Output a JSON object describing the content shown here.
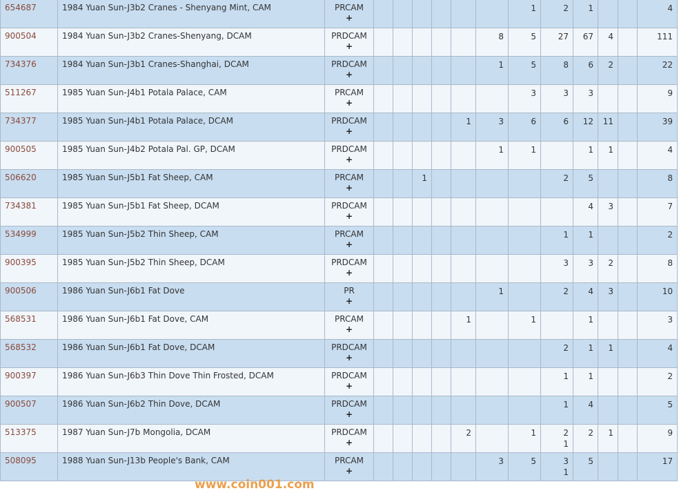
{
  "rows": [
    {
      "id": "654687",
      "desc": "1984 Yuan Sun-J3b2 Cranes - Shenyang Mint, CAM",
      "grade": "PRCAM",
      "plus": "+",
      "counts": [
        "",
        "",
        "",
        "",
        "",
        "",
        "1",
        "2",
        "1",
        "",
        "",
        ""
      ],
      "subs": {},
      "total": "4"
    },
    {
      "id": "900504",
      "desc": "1984 Yuan Sun-J3b2 Cranes-Shenyang, DCAM",
      "grade": "PRDCAM",
      "plus": "+",
      "counts": [
        "",
        "",
        "",
        "",
        "",
        "8",
        "5",
        "27",
        "67",
        "4",
        "",
        ""
      ],
      "subs": {},
      "total": "111"
    },
    {
      "id": "734376",
      "desc": "1984 Yuan Sun-J3b1 Cranes-Shanghai, DCAM",
      "grade": "PRDCAM",
      "plus": "+",
      "counts": [
        "",
        "",
        "",
        "",
        "",
        "1",
        "5",
        "8",
        "6",
        "2",
        "",
        ""
      ],
      "subs": {},
      "total": "22"
    },
    {
      "id": "511267",
      "desc": "1985 Yuan Sun-J4b1 Potala Palace, CAM",
      "grade": "PRCAM",
      "plus": "+",
      "counts": [
        "",
        "",
        "",
        "",
        "",
        "",
        "3",
        "3",
        "3",
        "",
        "",
        ""
      ],
      "subs": {},
      "total": "9"
    },
    {
      "id": "734377",
      "desc": "1985 Yuan Sun-J4b1 Potala Palace, DCAM",
      "grade": "PRDCAM",
      "plus": "+",
      "counts": [
        "",
        "",
        "",
        "",
        "1",
        "3",
        "6",
        "6",
        "12",
        "11",
        "",
        ""
      ],
      "subs": {},
      "total": "39"
    },
    {
      "id": "900505",
      "desc": "1985 Yuan Sun-J4b2 Potala Pal. GP, DCAM",
      "grade": "PRDCAM",
      "plus": "+",
      "counts": [
        "",
        "",
        "",
        "",
        "",
        "1",
        "1",
        "",
        "1",
        "1",
        "",
        ""
      ],
      "subs": {},
      "total": "4"
    },
    {
      "id": "506620",
      "desc": "1985 Yuan Sun-J5b1 Fat Sheep, CAM",
      "grade": "PRCAM",
      "plus": "+",
      "counts": [
        "",
        "",
        "1",
        "",
        "",
        "",
        "",
        "2",
        "5",
        "",
        "",
        ""
      ],
      "subs": {},
      "total": "8"
    },
    {
      "id": "734381",
      "desc": "1985 Yuan Sun-J5b1 Fat Sheep, DCAM",
      "grade": "PRDCAM",
      "plus": "+",
      "counts": [
        "",
        "",
        "",
        "",
        "",
        "",
        "",
        "",
        "4",
        "3",
        "",
        ""
      ],
      "subs": {},
      "total": "7"
    },
    {
      "id": "534999",
      "desc": "1985 Yuan Sun-J5b2 Thin Sheep, CAM",
      "grade": "PRCAM",
      "plus": "+",
      "counts": [
        "",
        "",
        "",
        "",
        "",
        "",
        "",
        "1",
        "1",
        "",
        "",
        ""
      ],
      "subs": {},
      "total": "2"
    },
    {
      "id": "900395",
      "desc": "1985 Yuan Sun-J5b2 Thin Sheep, DCAM",
      "grade": "PRDCAM",
      "plus": "+",
      "counts": [
        "",
        "",
        "",
        "",
        "",
        "",
        "",
        "3",
        "3",
        "2",
        "",
        ""
      ],
      "subs": {},
      "total": "8"
    },
    {
      "id": "900506",
      "desc": "1986 Yuan Sun-J6b1 Fat Dove",
      "grade": "PR",
      "plus": "+",
      "counts": [
        "",
        "",
        "",
        "",
        "",
        "1",
        "",
        "2",
        "4",
        "3",
        "",
        ""
      ],
      "subs": {},
      "total": "10"
    },
    {
      "id": "568531",
      "desc": "1986 Yuan Sun-J6b1 Fat Dove, CAM",
      "grade": "PRCAM",
      "plus": "+",
      "counts": [
        "",
        "",
        "",
        "",
        "1",
        "",
        "1",
        "",
        "1",
        "",
        "",
        ""
      ],
      "subs": {},
      "total": "3"
    },
    {
      "id": "568532",
      "desc": "1986 Yuan Sun-J6b1 Fat Dove, DCAM",
      "grade": "PRDCAM",
      "plus": "+",
      "counts": [
        "",
        "",
        "",
        "",
        "",
        "",
        "",
        "2",
        "1",
        "1",
        "",
        ""
      ],
      "subs": {},
      "total": "4"
    },
    {
      "id": "900397",
      "desc": "1986 Yuan Sun-J6b3 Thin Dove Thin Frosted, DCAM",
      "grade": "PRDCAM",
      "plus": "+",
      "counts": [
        "",
        "",
        "",
        "",
        "",
        "",
        "",
        "1",
        "1",
        "",
        "",
        ""
      ],
      "subs": {},
      "total": "2"
    },
    {
      "id": "900507",
      "desc": "1986 Yuan Sun-J6b2 Thin Dove, DCAM",
      "grade": "PRDCAM",
      "plus": "+",
      "counts": [
        "",
        "",
        "",
        "",
        "",
        "",
        "",
        "1",
        "4",
        "",
        "",
        ""
      ],
      "subs": {},
      "total": "5"
    },
    {
      "id": "513375",
      "desc": "1987 Yuan Sun-J7b Mongolia, DCAM",
      "grade": "PRDCAM",
      "plus": "+",
      "counts": [
        "",
        "",
        "",
        "",
        "2",
        "",
        "1",
        "2",
        "2",
        "1",
        "",
        ""
      ],
      "subs": {
        "7": "1"
      },
      "total": "9"
    },
    {
      "id": "508095",
      "desc": "1988 Yuan Sun-J13b People's Bank, CAM",
      "grade": "PRCAM",
      "plus": "+",
      "counts": [
        "",
        "",
        "",
        "",
        "",
        "3",
        "5",
        "3",
        "5",
        "",
        "",
        ""
      ],
      "subs": {
        "7": "1"
      },
      "total": "17"
    }
  ],
  "watermark": "www.coin001.com",
  "colors": {
    "row_odd": "#c8ddf0",
    "row_even": "#f1f6fb",
    "id_link": "#8b4a3a",
    "border": "#a9b8c8",
    "watermark": "#e8963c"
  }
}
